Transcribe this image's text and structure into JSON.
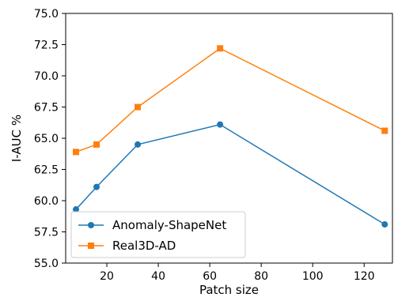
{
  "chart_data": {
    "type": "line",
    "title": "",
    "xlabel": "Patch size",
    "ylabel": "I-AUC %",
    "xlim": [
      4,
      131
    ],
    "ylim": [
      55.0,
      75.0
    ],
    "x_ticks": [
      20,
      40,
      60,
      80,
      100,
      120
    ],
    "x_tick_labels": [
      "20",
      "40",
      "60",
      "80",
      "100",
      "120"
    ],
    "y_ticks": [
      55.0,
      57.5,
      60.0,
      62.5,
      65.0,
      67.5,
      70.0,
      72.5,
      75.0
    ],
    "y_tick_labels": [
      "55.0",
      "57.5",
      "60.0",
      "62.5",
      "65.0",
      "67.5",
      "70.0",
      "72.5",
      "75.0"
    ],
    "grid": false,
    "legend_position": "lower-left",
    "x": [
      8,
      16,
      32,
      64,
      128
    ],
    "series": [
      {
        "name": "Anomaly-ShapeNet",
        "values": [
          59.3,
          61.1,
          64.5,
          66.1,
          58.1
        ],
        "color": "#1f77b4",
        "marker": "circle"
      },
      {
        "name": "Real3D-AD",
        "values": [
          63.9,
          64.5,
          67.5,
          72.2,
          65.6
        ],
        "color": "#ff7f0e",
        "marker": "square"
      }
    ]
  }
}
